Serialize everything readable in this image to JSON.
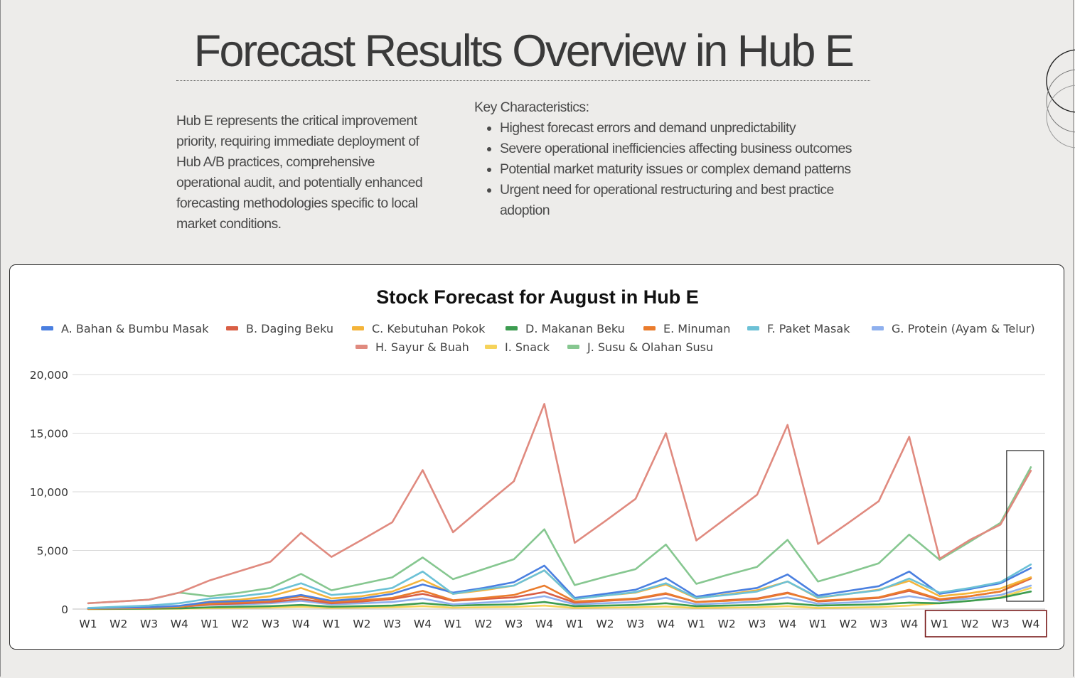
{
  "page": {
    "title": "Forecast Results Overview in Hub E",
    "summary": "Hub E represents the critical improvement priority, requiring immediate deployment of Hub A/B practices, comprehensive operational audit, and potentially enhanced forecasting methodologies specific to local market conditions.",
    "key_characteristics": {
      "heading": "Key Characteristics:",
      "items": [
        "Highest forecast errors and demand unpredictability",
        "Severe operational inefficiencies affecting business outcomes",
        "Potential market maturity issues or complex demand patterns",
        "Urgent need for operational restructuring and best practice adoption"
      ]
    }
  },
  "chart_data": {
    "type": "line",
    "title": "Stock Forecast for August in Hub E",
    "xlabel": "",
    "ylabel": "",
    "ylim": [
      0,
      20000
    ],
    "yticks": [
      0,
      5000,
      10000,
      15000,
      20000
    ],
    "ytick_labels": [
      "0",
      "5,000",
      "10,000",
      "15,000",
      "20,000"
    ],
    "grid": true,
    "legend_position": "top",
    "categories": [
      "W1",
      "W2",
      "W3",
      "W4",
      "W1",
      "W2",
      "W3",
      "W4",
      "W1",
      "W2",
      "W3",
      "W4",
      "W1",
      "W2",
      "W3",
      "W4",
      "W1",
      "W2",
      "W3",
      "W4",
      "W1",
      "W2",
      "W3",
      "W4",
      "W1",
      "W2",
      "W3",
      "W4",
      "W1",
      "W2",
      "W3",
      "W4"
    ],
    "forecast_start_index": 28,
    "series": [
      {
        "name": "A. Bahan & Bumbu Masak",
        "color": "#4a7fe0",
        "values": [
          80,
          120,
          160,
          280,
          600,
          680,
          800,
          1200,
          700,
          900,
          1300,
          2100,
          1400,
          1800,
          2300,
          3700,
          950,
          1300,
          1650,
          2650,
          1050,
          1450,
          1800,
          2950,
          1150,
          1550,
          1950,
          3200,
          1300,
          1700,
          2200,
          3500
        ]
      },
      {
        "name": "B. Daging Beku",
        "color": "#d95f45",
        "values": [
          30,
          60,
          100,
          180,
          400,
          480,
          600,
          850,
          500,
          650,
          850,
          1300,
          700,
          850,
          1000,
          1450,
          550,
          700,
          850,
          1300,
          600,
          750,
          900,
          1400,
          650,
          800,
          950,
          1550,
          800,
          1100,
          1500,
          2600
        ]
      },
      {
        "name": "C. Kebutuhan Pokok",
        "color": "#f4b43a",
        "values": [
          60,
          100,
          150,
          250,
          650,
          800,
          1100,
          1800,
          900,
          1100,
          1500,
          2500,
          1300,
          1600,
          2000,
          3300,
          850,
          1150,
          1400,
          2100,
          900,
          1250,
          1600,
          2350,
          950,
          1300,
          1650,
          2400,
          1100,
          1350,
          1750,
          2700
        ]
      },
      {
        "name": "D. Makanan Beku",
        "color": "#3c9c50",
        "values": [
          10,
          20,
          40,
          60,
          150,
          200,
          250,
          350,
          200,
          250,
          300,
          500,
          300,
          350,
          400,
          600,
          250,
          300,
          350,
          500,
          250,
          300,
          350,
          500,
          300,
          350,
          400,
          550,
          500,
          700,
          950,
          1500
        ]
      },
      {
        "name": "E. Minuman",
        "color": "#ea7c2d",
        "values": [
          30,
          60,
          100,
          200,
          450,
          600,
          700,
          1100,
          600,
          750,
          950,
          1550,
          750,
          950,
          1200,
          2000,
          650,
          750,
          900,
          1350,
          600,
          700,
          850,
          1350,
          700,
          850,
          1000,
          1650,
          850,
          1100,
          1500,
          2700
        ]
      },
      {
        "name": "F. Paket Masak",
        "color": "#6cc1d6",
        "values": [
          100,
          200,
          300,
          500,
          900,
          1100,
          1400,
          2200,
          1200,
          1400,
          1800,
          3200,
          1300,
          1700,
          2000,
          3300,
          850,
          1150,
          1450,
          2200,
          950,
          1200,
          1500,
          2350,
          1000,
          1300,
          1600,
          2600,
          1400,
          1800,
          2300,
          3800
        ]
      },
      {
        "name": "G. Protein (Ayam & Telur)",
        "color": "#8fb0ee",
        "values": [
          40,
          80,
          120,
          200,
          350,
          400,
          500,
          700,
          400,
          500,
          600,
          900,
          400,
          550,
          700,
          1100,
          400,
          500,
          600,
          950,
          400,
          500,
          650,
          1000,
          450,
          550,
          700,
          1100,
          700,
          900,
          1200,
          2000
        ]
      },
      {
        "name": "H. Sayur & Buah",
        "color": "#e08a7f",
        "values": [
          500,
          650,
          800,
          1400,
          2450,
          3250,
          4050,
          6500,
          4450,
          5900,
          7400,
          11850,
          6550,
          8750,
          10900,
          17500,
          5650,
          7500,
          9400,
          15000,
          5850,
          7800,
          9750,
          15700,
          5550,
          7350,
          9200,
          14700,
          4300,
          5900,
          7200,
          11800
        ]
      },
      {
        "name": "I. Snack",
        "color": "#f6d35a",
        "values": [
          5,
          10,
          15,
          30,
          80,
          100,
          130,
          200,
          100,
          130,
          160,
          250,
          120,
          150,
          180,
          300,
          100,
          120,
          150,
          220,
          100,
          120,
          150,
          250,
          100,
          130,
          170,
          300,
          500,
          700,
          1000,
          1800
        ]
      },
      {
        "name": "J. Susu & Olahan Susu",
        "color": "#86c790",
        "values": [
          500,
          650,
          800,
          1400,
          1100,
          1400,
          1800,
          3000,
          1600,
          2150,
          2700,
          4400,
          2550,
          3400,
          4250,
          6800,
          2050,
          2750,
          3400,
          5500,
          2150,
          2900,
          3600,
          5900,
          2350,
          3100,
          3900,
          6350,
          4200,
          5750,
          7350,
          12100
        ]
      }
    ]
  }
}
